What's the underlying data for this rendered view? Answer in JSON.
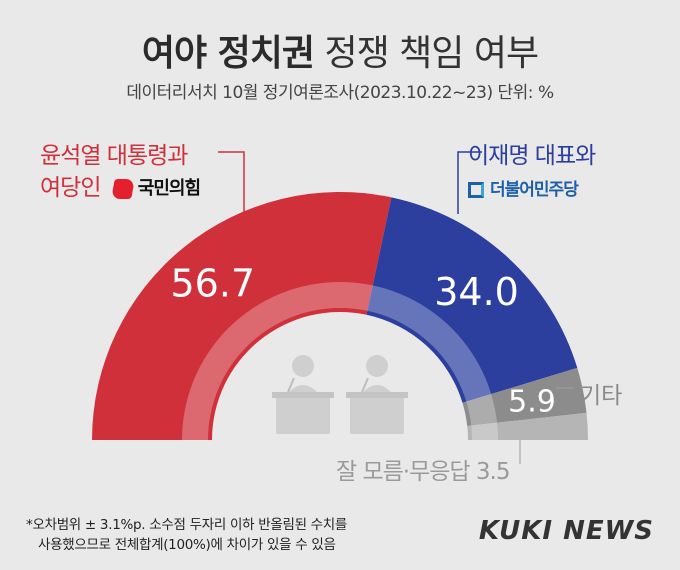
{
  "title": {
    "bold": "여야 정치권",
    "rest": "정쟁 책임 여부"
  },
  "subtitle": "데이터리서치 10월 정기여론조사(2023.10.22~23) 단위: %",
  "labels": {
    "left_line1": "윤석열 대통령과",
    "left_line2": "여당인",
    "left_party": "국민의힘",
    "right_line1": "이재명 대표와",
    "right_party": "더불어민주당",
    "other": "기타",
    "dont_know": "잘 모름·무응답 3.5"
  },
  "colors": {
    "left": "#d0303a",
    "right": "#2c3f9e",
    "other": "#8c8c8c",
    "dont_know": "#b5b5b5",
    "inner": "#d9d9d9"
  },
  "chart_data": {
    "type": "pie",
    "style": "semicircle-donut",
    "title": "여야 정치권 정쟁 책임 여부",
    "unit": "%",
    "slices": [
      {
        "label": "윤석열 대통령과 여당인 국민의힘",
        "value": 56.7,
        "display": "56.7"
      },
      {
        "label": "이재명 대표와 더불어민주당",
        "value": 34.0,
        "display": "34.0"
      },
      {
        "label": "기타",
        "value": 5.9,
        "display": "5.9"
      },
      {
        "label": "잘 모름·무응답",
        "value": 3.5,
        "display": ""
      }
    ]
  },
  "footnote": {
    "line1": "*오차범위 ± 3.1%p. 소수점 두자리 이하 반올림된 수치를",
    "line2": "사용했으므로 전체합계(100%)에 차이가 있을 수 있음"
  },
  "logo": "KUKI NEWS"
}
